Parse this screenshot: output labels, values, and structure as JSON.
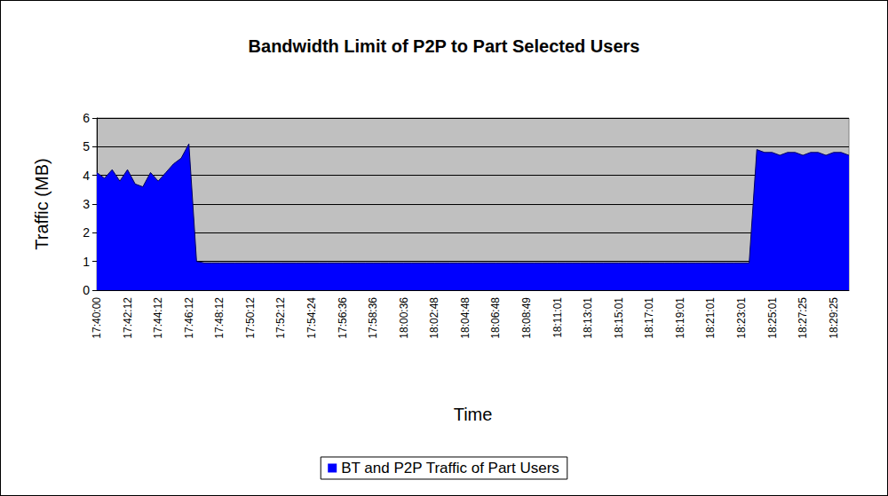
{
  "chart_data": {
    "type": "area",
    "title": "Bandwidth Limit of P2P to Part Selected Users",
    "x_label": "Time",
    "y_label": "Traffic (MB)",
    "categories": [
      "17:40:00",
      null,
      null,
      null,
      "17:42:12",
      null,
      null,
      null,
      "17:44:12",
      null,
      null,
      null,
      "17:46:12",
      null,
      null,
      null,
      "17:48:12",
      null,
      null,
      null,
      "17:50:12",
      null,
      null,
      null,
      "17:52:12",
      null,
      null,
      null,
      "17:54:24",
      null,
      null,
      null,
      "17:56:36",
      null,
      null,
      null,
      "17:58:36",
      null,
      null,
      null,
      "18:00:36",
      null,
      null,
      null,
      "18:02:48",
      null,
      null,
      null,
      "18:04:48",
      null,
      null,
      null,
      "18:06:48",
      null,
      null,
      null,
      "18:08:49",
      null,
      null,
      null,
      "18:11:01",
      null,
      null,
      null,
      "18:13:01",
      null,
      null,
      null,
      "18:15:01",
      null,
      null,
      null,
      "18:17:01",
      null,
      null,
      null,
      "18:19:01",
      null,
      null,
      null,
      "18:21:01",
      null,
      null,
      null,
      "18:23:01",
      null,
      null,
      null,
      "18:25:01",
      null,
      null,
      null,
      "18:27:25",
      null,
      null,
      null,
      "18:29:25",
      null,
      null
    ],
    "series": [
      {
        "name": "BT and P2P Traffic of Part Users",
        "color": "#0000ff",
        "values": [
          4.1,
          3.9,
          4.2,
          3.8,
          4.2,
          3.7,
          3.6,
          4.1,
          3.8,
          4.1,
          4.4,
          4.6,
          5.1,
          1.0,
          0.95,
          0.95,
          0.95,
          0.95,
          0.95,
          0.95,
          0.95,
          0.95,
          0.95,
          0.95,
          0.95,
          0.95,
          0.95,
          0.95,
          0.95,
          0.95,
          0.95,
          0.95,
          0.95,
          0.95,
          0.95,
          0.95,
          0.95,
          0.95,
          0.95,
          0.95,
          0.95,
          0.95,
          0.95,
          0.95,
          0.95,
          0.95,
          0.95,
          0.95,
          0.95,
          0.95,
          0.95,
          0.95,
          0.95,
          0.95,
          0.95,
          0.95,
          0.95,
          0.95,
          0.95,
          0.95,
          0.95,
          0.95,
          0.95,
          0.95,
          0.95,
          0.95,
          0.95,
          0.95,
          0.95,
          0.95,
          0.95,
          0.95,
          0.95,
          0.95,
          0.95,
          0.95,
          0.95,
          0.95,
          0.95,
          0.95,
          0.95,
          0.95,
          0.95,
          0.95,
          0.95,
          0.95,
          4.9,
          4.8,
          4.8,
          4.7,
          4.8,
          4.8,
          4.7,
          4.8,
          4.8,
          4.7,
          4.8,
          4.8,
          4.7
        ]
      }
    ],
    "ylim": [
      0,
      6
    ],
    "yticks": [
      0,
      1,
      2,
      3,
      4,
      5,
      6
    ],
    "grid": true,
    "legend": "bottom"
  }
}
